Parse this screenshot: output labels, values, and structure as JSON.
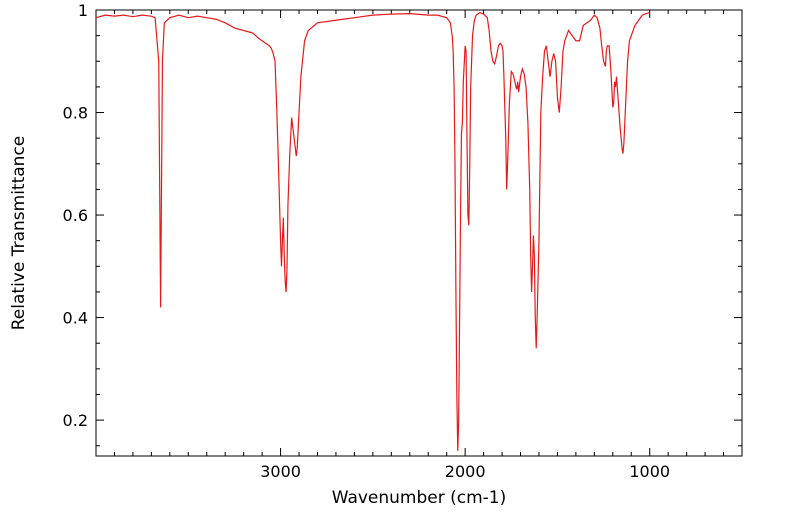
{
  "chart_data": {
    "type": "line",
    "title": "",
    "xlabel": "Wavenumber (cm-1)",
    "ylabel": "Relative Transmittance",
    "xlim": [
      4000,
      500
    ],
    "ylim": [
      0.13,
      1.0
    ],
    "x_reversed": true,
    "xticks": [
      3000,
      2000,
      1000
    ],
    "xtick_labels": [
      "3000",
      "2000",
      "1000"
    ],
    "yticks": [
      0.2,
      0.4,
      0.6,
      0.8,
      1.0
    ],
    "ytick_labels": [
      "0.2",
      "0.4",
      "0.6",
      "0.8",
      "1"
    ],
    "grid": false,
    "legend": "none",
    "line_color": "#e31a1c",
    "series": [
      {
        "values": [
          [
            4000,
            0.985
          ],
          [
            3950,
            0.99
          ],
          [
            3900,
            0.988
          ],
          [
            3850,
            0.99
          ],
          [
            3800,
            0.987
          ],
          [
            3750,
            0.99
          ],
          [
            3700,
            0.988
          ],
          [
            3680,
            0.985
          ],
          [
            3660,
            0.9
          ],
          [
            3650,
            0.42
          ],
          [
            3640,
            0.9
          ],
          [
            3630,
            0.975
          ],
          [
            3600,
            0.985
          ],
          [
            3550,
            0.99
          ],
          [
            3500,
            0.985
          ],
          [
            3450,
            0.988
          ],
          [
            3400,
            0.985
          ],
          [
            3350,
            0.982
          ],
          [
            3300,
            0.975
          ],
          [
            3250,
            0.965
          ],
          [
            3200,
            0.96
          ],
          [
            3150,
            0.955
          ],
          [
            3120,
            0.945
          ],
          [
            3100,
            0.94
          ],
          [
            3080,
            0.935
          ],
          [
            3060,
            0.93
          ],
          [
            3050,
            0.925
          ],
          [
            3040,
            0.915
          ],
          [
            3030,
            0.9
          ],
          [
            3020,
            0.8
          ],
          [
            3010,
            0.68
          ],
          [
            3000,
            0.55
          ],
          [
            2995,
            0.5
          ],
          [
            2990,
            0.55
          ],
          [
            2985,
            0.595
          ],
          [
            2980,
            0.52
          ],
          [
            2975,
            0.47
          ],
          [
            2970,
            0.45
          ],
          [
            2965,
            0.5
          ],
          [
            2960,
            0.62
          ],
          [
            2950,
            0.72
          ],
          [
            2940,
            0.79
          ],
          [
            2930,
            0.76
          ],
          [
            2920,
            0.73
          ],
          [
            2915,
            0.715
          ],
          [
            2910,
            0.73
          ],
          [
            2900,
            0.8
          ],
          [
            2890,
            0.87
          ],
          [
            2870,
            0.94
          ],
          [
            2850,
            0.96
          ],
          [
            2800,
            0.975
          ],
          [
            2700,
            0.98
          ],
          [
            2600,
            0.985
          ],
          [
            2500,
            0.99
          ],
          [
            2400,
            0.992
          ],
          [
            2300,
            0.993
          ],
          [
            2200,
            0.99
          ],
          [
            2150,
            0.99
          ],
          [
            2100,
            0.985
          ],
          [
            2080,
            0.975
          ],
          [
            2070,
            0.95
          ],
          [
            2065,
            0.92
          ],
          [
            2060,
            0.85
          ],
          [
            2055,
            0.7
          ],
          [
            2050,
            0.45
          ],
          [
            2045,
            0.25
          ],
          [
            2040,
            0.14
          ],
          [
            2035,
            0.2
          ],
          [
            2030,
            0.4
          ],
          [
            2025,
            0.6
          ],
          [
            2020,
            0.76
          ],
          [
            2015,
            0.78
          ],
          [
            2010,
            0.86
          ],
          [
            2000,
            0.93
          ],
          [
            1995,
            0.92
          ],
          [
            1990,
            0.75
          ],
          [
            1985,
            0.6
          ],
          [
            1980,
            0.58
          ],
          [
            1975,
            0.7
          ],
          [
            1970,
            0.85
          ],
          [
            1960,
            0.95
          ],
          [
            1950,
            0.98
          ],
          [
            1940,
            0.99
          ],
          [
            1920,
            0.995
          ],
          [
            1900,
            0.992
          ],
          [
            1880,
            0.985
          ],
          [
            1870,
            0.96
          ],
          [
            1860,
            0.92
          ],
          [
            1850,
            0.9
          ],
          [
            1840,
            0.895
          ],
          [
            1830,
            0.91
          ],
          [
            1820,
            0.93
          ],
          [
            1810,
            0.935
          ],
          [
            1800,
            0.93
          ],
          [
            1795,
            0.92
          ],
          [
            1790,
            0.87
          ],
          [
            1780,
            0.75
          ],
          [
            1775,
            0.65
          ],
          [
            1770,
            0.7
          ],
          [
            1760,
            0.82
          ],
          [
            1750,
            0.88
          ],
          [
            1740,
            0.875
          ],
          [
            1730,
            0.86
          ],
          [
            1725,
            0.85
          ],
          [
            1720,
            0.845
          ],
          [
            1715,
            0.86
          ],
          [
            1710,
            0.84
          ],
          [
            1700,
            0.87
          ],
          [
            1690,
            0.885
          ],
          [
            1680,
            0.875
          ],
          [
            1670,
            0.85
          ],
          [
            1660,
            0.78
          ],
          [
            1650,
            0.65
          ],
          [
            1645,
            0.52
          ],
          [
            1640,
            0.45
          ],
          [
            1635,
            0.5
          ],
          [
            1630,
            0.56
          ],
          [
            1625,
            0.52
          ],
          [
            1620,
            0.4
          ],
          [
            1615,
            0.34
          ],
          [
            1610,
            0.4
          ],
          [
            1600,
            0.55
          ],
          [
            1590,
            0.8
          ],
          [
            1580,
            0.87
          ],
          [
            1570,
            0.92
          ],
          [
            1560,
            0.93
          ],
          [
            1550,
            0.9
          ],
          [
            1540,
            0.87
          ],
          [
            1530,
            0.9
          ],
          [
            1520,
            0.915
          ],
          [
            1510,
            0.9
          ],
          [
            1500,
            0.83
          ],
          [
            1490,
            0.8
          ],
          [
            1480,
            0.85
          ],
          [
            1470,
            0.92
          ],
          [
            1460,
            0.94
          ],
          [
            1440,
            0.96
          ],
          [
            1420,
            0.95
          ],
          [
            1400,
            0.94
          ],
          [
            1380,
            0.94
          ],
          [
            1360,
            0.97
          ],
          [
            1340,
            0.975
          ],
          [
            1320,
            0.98
          ],
          [
            1300,
            0.99
          ],
          [
            1285,
            0.985
          ],
          [
            1270,
            0.965
          ],
          [
            1260,
            0.93
          ],
          [
            1250,
            0.9
          ],
          [
            1240,
            0.89
          ],
          [
            1235,
            0.92
          ],
          [
            1230,
            0.93
          ],
          [
            1220,
            0.93
          ],
          [
            1210,
            0.88
          ],
          [
            1200,
            0.81
          ],
          [
            1195,
            0.82
          ],
          [
            1190,
            0.86
          ],
          [
            1185,
            0.85
          ],
          [
            1180,
            0.87
          ],
          [
            1170,
            0.82
          ],
          [
            1160,
            0.77
          ],
          [
            1150,
            0.73
          ],
          [
            1145,
            0.72
          ],
          [
            1140,
            0.74
          ],
          [
            1130,
            0.82
          ],
          [
            1120,
            0.9
          ],
          [
            1110,
            0.94
          ],
          [
            1100,
            0.95
          ],
          [
            1080,
            0.97
          ],
          [
            1060,
            0.98
          ],
          [
            1040,
            0.99
          ],
          [
            1020,
            0.993
          ],
          [
            1000,
            0.995
          ]
        ]
      }
    ]
  }
}
